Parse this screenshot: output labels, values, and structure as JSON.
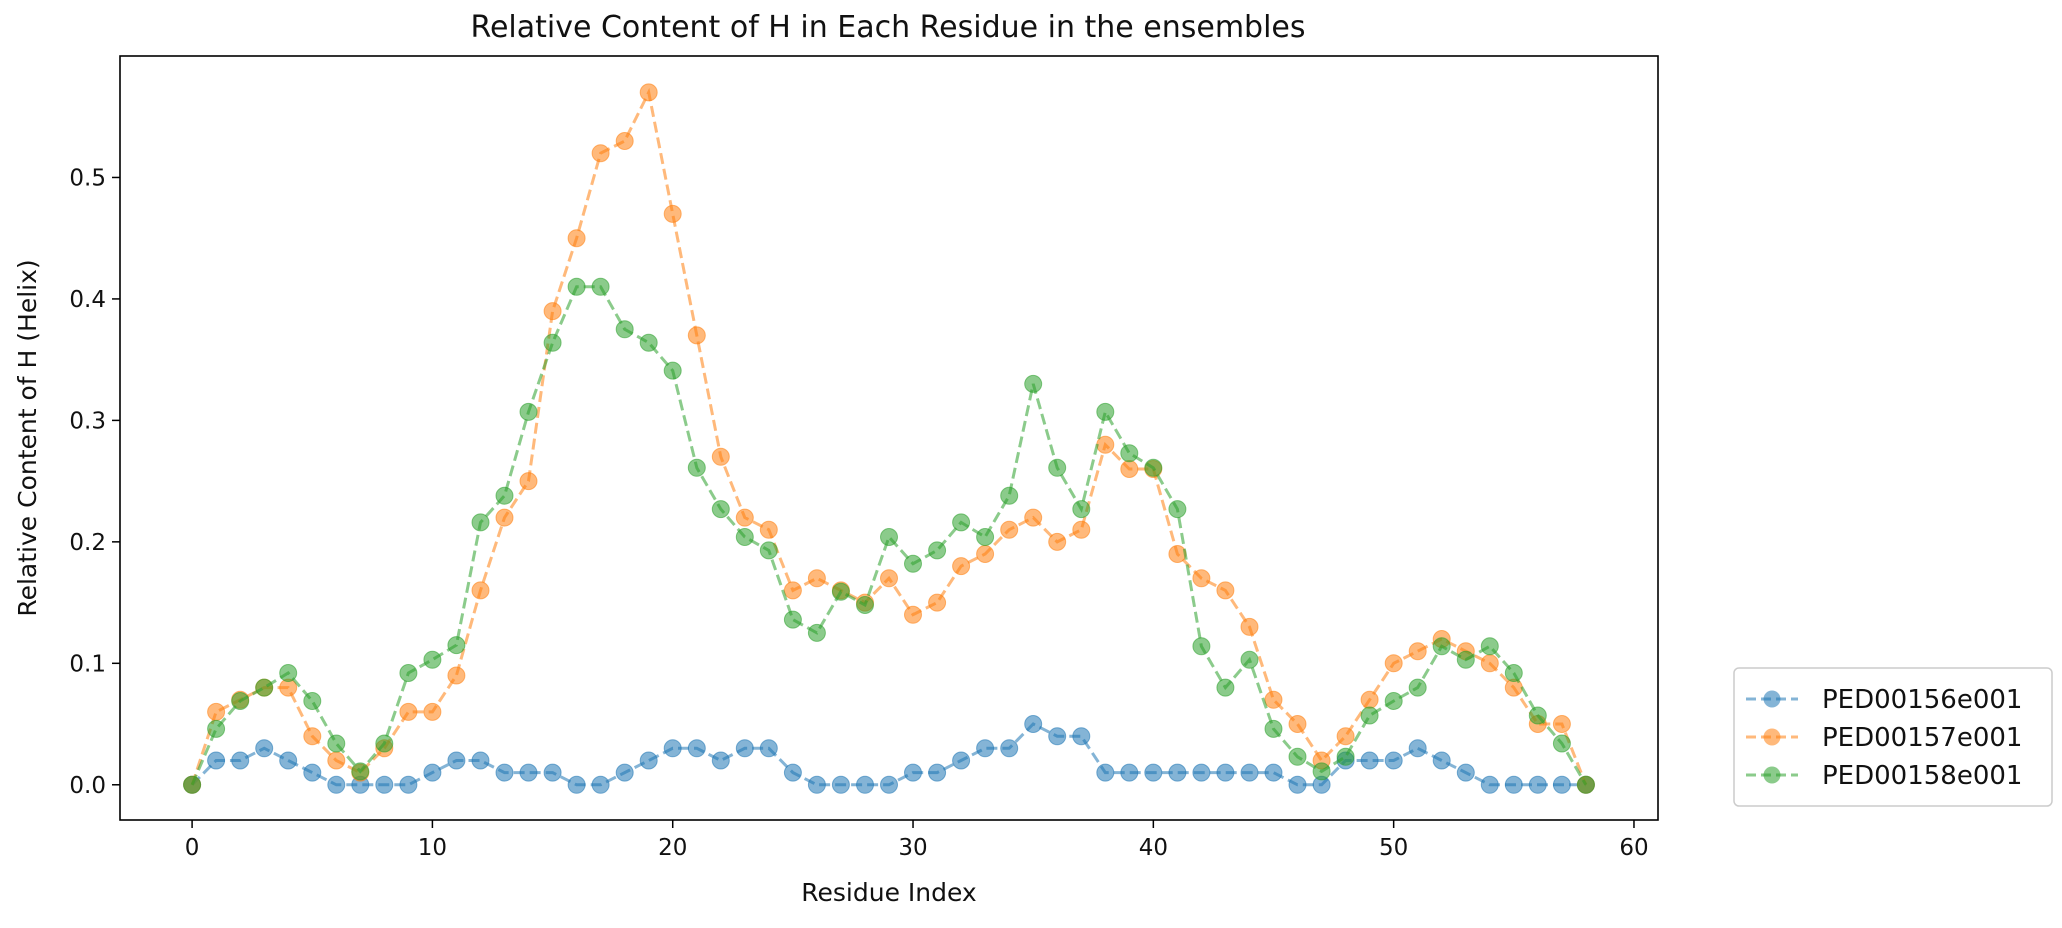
{
  "chart_data": {
    "type": "line",
    "title": "Relative Content of H in Each Residue in the ensembles",
    "xlabel": "Residue Index",
    "ylabel": "Relative Content of H (Helix)",
    "xlim": [
      -3,
      61
    ],
    "ylim": [
      -0.029,
      0.6
    ],
    "x_ticks": [
      0,
      10,
      20,
      30,
      40,
      50,
      60
    ],
    "y_ticks": [
      0.0,
      0.1,
      0.2,
      0.3,
      0.4,
      0.5
    ],
    "x_tick_labels": [
      "0",
      "10",
      "20",
      "30",
      "40",
      "50",
      "60"
    ],
    "y_tick_labels": [
      "0.0",
      "0.1",
      "0.2",
      "0.3",
      "0.4",
      "0.5"
    ],
    "grid": false,
    "legend_position": "outside right, bottom",
    "marker": "circle",
    "line_style": "dashed",
    "x": [
      0,
      1,
      2,
      3,
      4,
      5,
      6,
      7,
      8,
      9,
      10,
      11,
      12,
      13,
      14,
      15,
      16,
      17,
      18,
      19,
      20,
      21,
      22,
      23,
      24,
      25,
      26,
      27,
      28,
      29,
      30,
      31,
      32,
      33,
      34,
      35,
      36,
      37,
      38,
      39,
      40,
      41,
      42,
      43,
      44,
      45,
      46,
      47,
      48,
      49,
      50,
      51,
      52,
      53,
      54,
      55,
      56,
      57,
      58
    ],
    "series": [
      {
        "name": "PED00156e001",
        "color": "#1f77b4",
        "values": [
          0,
          0.02,
          0.02,
          0.03,
          0.02,
          0.01,
          0,
          0,
          0,
          0,
          0.01,
          0.02,
          0.02,
          0.01,
          0.01,
          0.01,
          0,
          0,
          0.01,
          0.02,
          0.03,
          0.03,
          0.02,
          0.03,
          0.03,
          0.01,
          0,
          0,
          0,
          0,
          0.01,
          0.01,
          0.02,
          0.03,
          0.03,
          0.05,
          0.04,
          0.04,
          0.01,
          0.01,
          0.01,
          0.01,
          0.01,
          0.01,
          0.01,
          0.01,
          0,
          0,
          0.02,
          0.02,
          0.02,
          0.03,
          0.02,
          0.01,
          0,
          0,
          0,
          0,
          0
        ]
      },
      {
        "name": "PED00157e001",
        "color": "#ff7f0e",
        "values": [
          0,
          0.06,
          0.07,
          0.08,
          0.08,
          0.04,
          0.02,
          0.01,
          0.03,
          0.06,
          0.06,
          0.09,
          0.16,
          0.22,
          0.25,
          0.39,
          0.45,
          0.52,
          0.53,
          0.57,
          0.47,
          0.37,
          0.27,
          0.22,
          0.21,
          0.16,
          0.17,
          0.16,
          0.15,
          0.17,
          0.14,
          0.15,
          0.18,
          0.19,
          0.21,
          0.22,
          0.2,
          0.21,
          0.28,
          0.26,
          0.26,
          0.19,
          0.17,
          0.16,
          0.13,
          0.07,
          0.05,
          0.02,
          0.04,
          0.07,
          0.1,
          0.11,
          0.12,
          0.11,
          0.1,
          0.08,
          0.05,
          0.05,
          0
        ]
      },
      {
        "name": "PED00158e001",
        "color": "#2ca02c",
        "values": [
          0,
          0.046,
          0.069,
          0.08,
          0.092,
          0.069,
          0.034,
          0.011,
          0.034,
          0.092,
          0.103,
          0.115,
          0.216,
          0.238,
          0.307,
          0.364,
          0.41,
          0.41,
          0.375,
          0.364,
          0.341,
          0.261,
          0.227,
          0.204,
          0.193,
          0.136,
          0.125,
          0.159,
          0.148,
          0.204,
          0.182,
          0.193,
          0.216,
          0.204,
          0.238,
          0.33,
          0.261,
          0.227,
          0.307,
          0.273,
          0.261,
          0.227,
          0.114,
          0.08,
          0.103,
          0.046,
          0.023,
          0.011,
          0.023,
          0.057,
          0.069,
          0.08,
          0.114,
          0.103,
          0.114,
          0.092,
          0.057,
          0.034,
          0
        ]
      }
    ]
  }
}
